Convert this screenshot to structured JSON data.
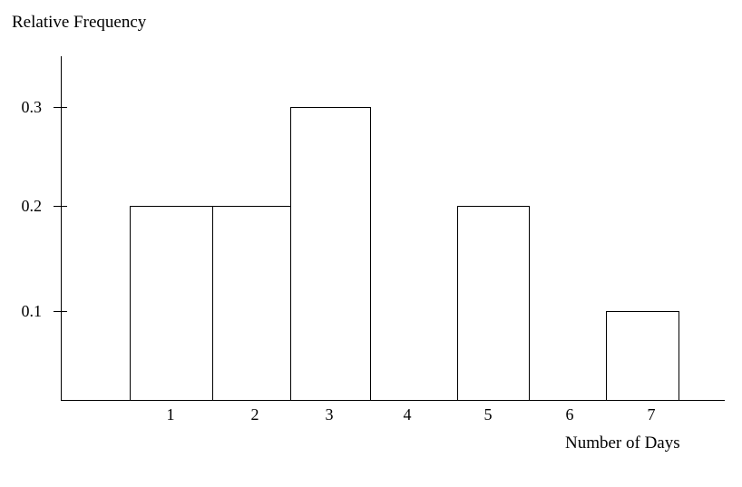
{
  "chart": {
    "y_axis_title": "Relative Frequency",
    "x_axis_title": "Number of Days"
  },
  "chart_data": {
    "type": "bar",
    "subtype": "histogram",
    "title": "",
    "xlabel": "Number of Days",
    "ylabel": "Relative Frequency",
    "categories": [
      "1",
      "2",
      "3",
      "4",
      "5",
      "6",
      "7"
    ],
    "values": [
      0.2,
      0.2,
      0.3,
      0,
      0.2,
      0,
      0.1
    ],
    "yticks": [
      "0.1",
      "0.2",
      "0.3"
    ],
    "ylim": [
      0,
      0.35
    ],
    "grid": false,
    "legend_position": "none",
    "bar_fill_color": "#ffffff",
    "bar_border_color": "#000000",
    "axis_color": "#000000",
    "background_color": "#ffffff"
  }
}
